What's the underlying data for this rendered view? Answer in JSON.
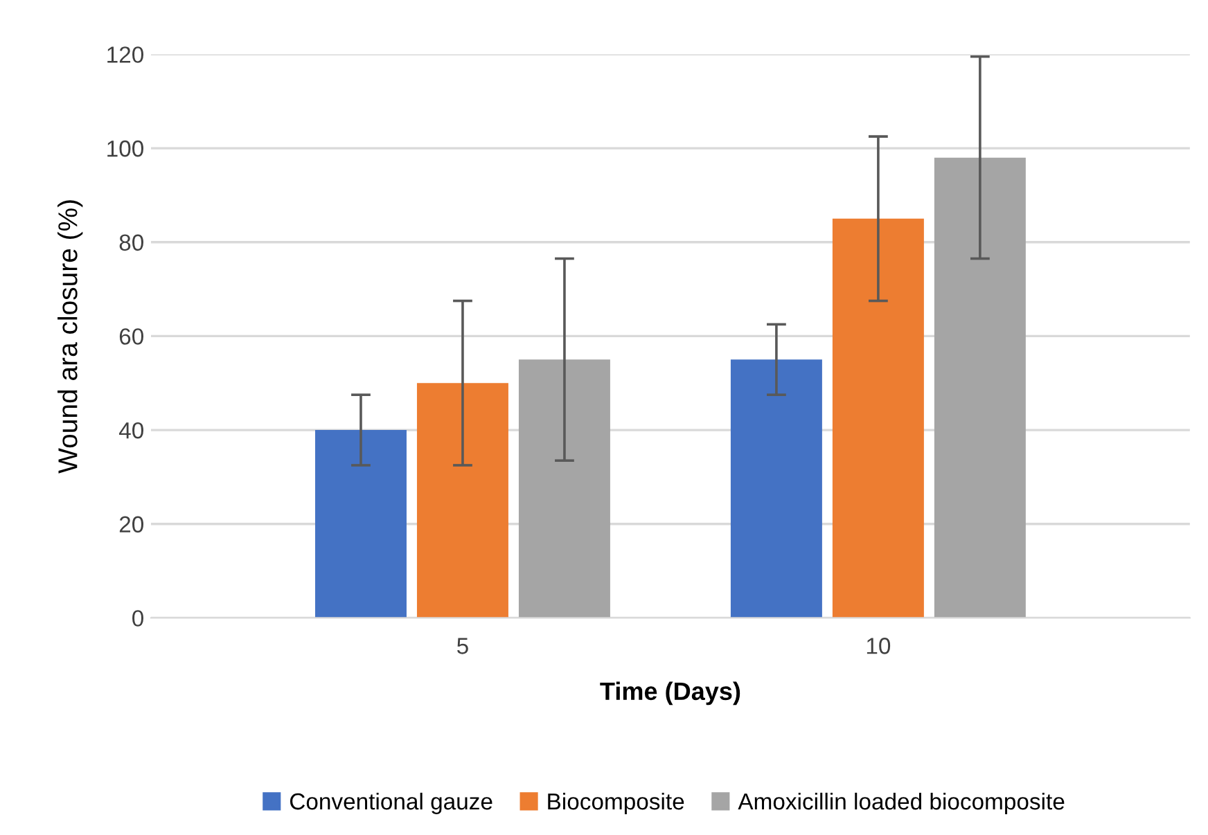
{
  "chart_data": {
    "type": "bar",
    "xlabel": "Time (Days)",
    "ylabel": "Wound ara closure (%)",
    "categories": [
      "5",
      "10"
    ],
    "series": [
      {
        "name": "Conventional gauze",
        "color": "#4472c4",
        "values": [
          40,
          55
        ],
        "errors": [
          7.5,
          7.5
        ]
      },
      {
        "name": "Biocomposite",
        "color": "#ed7d31",
        "values": [
          50,
          85
        ],
        "errors": [
          17.5,
          17.5
        ]
      },
      {
        "name": "Amoxicillin loaded biocomposite",
        "color": "#a5a5a5",
        "values": [
          55,
          98
        ],
        "errors": [
          21.5,
          21.5
        ]
      }
    ],
    "ylim": [
      0,
      120
    ],
    "yticks": [
      0,
      20,
      40,
      60,
      80,
      100,
      120
    ],
    "grid": "y",
    "legend": "bottom"
  }
}
